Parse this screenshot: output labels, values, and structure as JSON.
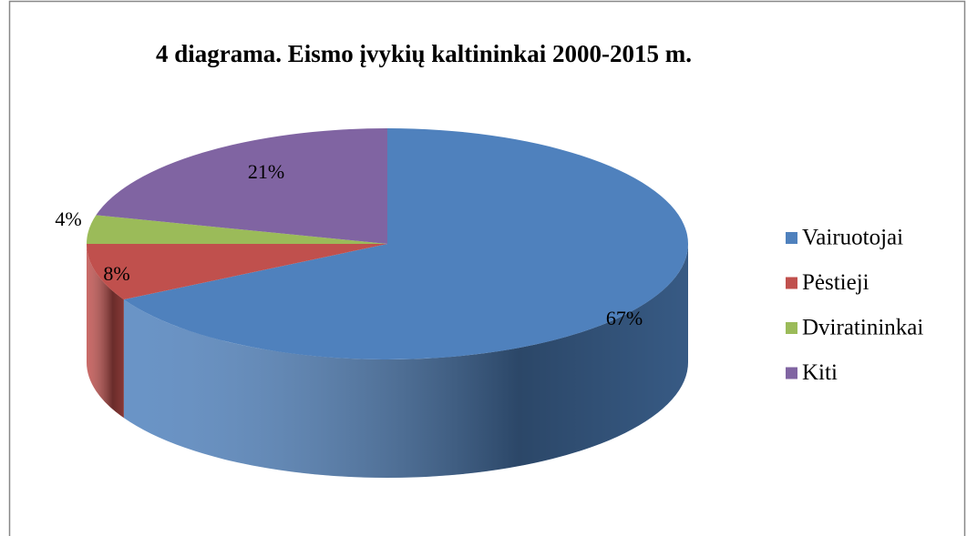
{
  "chart_data": {
    "type": "pie",
    "title": "4 diagrama. Eismo įvykių kaltininkai 2000-2015 m.",
    "categories": [
      "Vairuotojai",
      "Pėstieji",
      "Dviratininkai",
      "Kiti"
    ],
    "values": [
      67,
      8,
      4,
      21
    ],
    "value_labels": [
      "67%",
      "8%",
      "4%",
      "21%"
    ],
    "colors": [
      "#4f81bd",
      "#c0504d",
      "#9bbb59",
      "#8064a2"
    ],
    "legend": "right"
  }
}
